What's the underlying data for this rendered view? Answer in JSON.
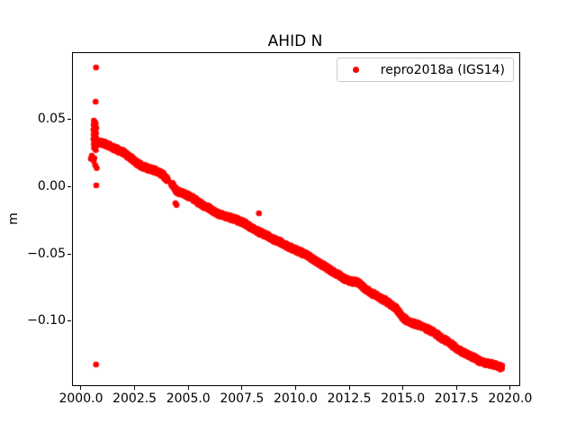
{
  "chart_data": {
    "type": "scatter",
    "title": "AHID N",
    "xlabel": "",
    "ylabel": "m",
    "grid": false,
    "xlim": [
      1999.581,
      2020.381
    ],
    "ylim": [
      -0.1469,
      0.1002
    ],
    "xticks": [
      2000.0,
      2002.5,
      2005.0,
      2007.5,
      2010.0,
      2012.5,
      2015.0,
      2017.5,
      2020.0
    ],
    "xtick_labels": [
      "2000.0",
      "2002.5",
      "2005.0",
      "2007.5",
      "2010.0",
      "2012.5",
      "2015.0",
      "2017.5",
      "2020.0"
    ],
    "yticks": [
      0.05,
      0.0,
      -0.05,
      -0.1
    ],
    "ytick_labels": [
      "0.05",
      "0.00",
      "−0.05",
      "−0.10"
    ],
    "legend": {
      "position": "upper right",
      "entries": [
        {
          "label": "repro2018a (IGS14)",
          "color": "#ff0000",
          "marker": "dot-icon"
        }
      ]
    },
    "series": [
      {
        "name": "repro2018a (IGS14)",
        "color": "#ff0000",
        "marker_radius_px": 3.3,
        "trend_anchors": [
          [
            2000.75,
            0.034
          ],
          [
            2001.05,
            0.033
          ],
          [
            2001.35,
            0.0305
          ],
          [
            2001.65,
            0.0282
          ],
          [
            2001.95,
            0.0262
          ],
          [
            2002.25,
            0.0226
          ],
          [
            2002.55,
            0.0184
          ],
          [
            2002.85,
            0.0158
          ],
          [
            2003.15,
            0.014
          ],
          [
            2003.45,
            0.0126
          ],
          [
            2003.75,
            0.01
          ],
          [
            2003.98,
            0.0058
          ],
          [
            2004.18,
            0.0028
          ],
          [
            2004.45,
            -0.0028
          ],
          [
            2004.75,
            -0.0046
          ],
          [
            2005.05,
            -0.0066
          ],
          [
            2005.35,
            -0.01
          ],
          [
            2005.65,
            -0.013
          ],
          [
            2005.95,
            -0.0156
          ],
          [
            2006.25,
            -0.0186
          ],
          [
            2006.55,
            -0.0206
          ],
          [
            2006.85,
            -0.0218
          ],
          [
            2007.15,
            -0.0236
          ],
          [
            2007.45,
            -0.0255
          ],
          [
            2007.75,
            -0.0282
          ],
          [
            2008.05,
            -0.031
          ],
          [
            2008.35,
            -0.0336
          ],
          [
            2008.65,
            -0.0358
          ],
          [
            2008.95,
            -0.0386
          ],
          [
            2009.25,
            -0.0406
          ],
          [
            2009.55,
            -0.0433
          ],
          [
            2009.85,
            -0.0455
          ],
          [
            2010.15,
            -0.0476
          ],
          [
            2010.45,
            -0.0498
          ],
          [
            2010.75,
            -0.0528
          ],
          [
            2011.05,
            -0.056
          ],
          [
            2011.35,
            -0.0588
          ],
          [
            2011.65,
            -0.062
          ],
          [
            2011.95,
            -0.0648
          ],
          [
            2012.25,
            -0.068
          ],
          [
            2012.55,
            -0.0695
          ],
          [
            2012.85,
            -0.0705
          ],
          [
            2013.15,
            -0.0745
          ],
          [
            2013.45,
            -0.078
          ],
          [
            2013.75,
            -0.0805
          ],
          [
            2014.05,
            -0.0832
          ],
          [
            2014.35,
            -0.0865
          ],
          [
            2014.65,
            -0.09
          ],
          [
            2014.95,
            -0.0965
          ],
          [
            2015.25,
            -0.1
          ],
          [
            2015.55,
            -0.1015
          ],
          [
            2015.85,
            -0.1032
          ],
          [
            2016.15,
            -0.1055
          ],
          [
            2016.45,
            -0.1082
          ],
          [
            2016.75,
            -0.1118
          ],
          [
            2017.05,
            -0.1145
          ],
          [
            2017.35,
            -0.1182
          ],
          [
            2017.65,
            -0.1215
          ],
          [
            2017.95,
            -0.124
          ],
          [
            2018.25,
            -0.1262
          ],
          [
            2018.55,
            -0.129
          ],
          [
            2018.85,
            -0.1305
          ],
          [
            2019.15,
            -0.1315
          ],
          [
            2019.4,
            -0.133
          ],
          [
            2019.58,
            -0.134
          ]
        ],
        "band": {
          "start": 2000.75,
          "end": 2019.58,
          "points_per_year": 320,
          "jitter_m": 0.0019,
          "gaps": [
            [
              2004.0,
              2004.16
            ]
          ]
        },
        "cluster_points": [
          [
            2000.66,
            0.0895
          ],
          [
            2000.64,
            0.064
          ],
          [
            2000.56,
            0.05
          ],
          [
            2000.6,
            0.049
          ],
          [
            2000.64,
            0.048
          ],
          [
            2000.55,
            0.047
          ],
          [
            2000.59,
            0.0462
          ],
          [
            2000.63,
            0.0452
          ],
          [
            2000.67,
            0.0444
          ],
          [
            2000.54,
            0.0432
          ],
          [
            2000.58,
            0.0424
          ],
          [
            2000.62,
            0.0415
          ],
          [
            2000.66,
            0.0406
          ],
          [
            2000.55,
            0.0396
          ],
          [
            2000.59,
            0.0388
          ],
          [
            2000.63,
            0.0378
          ],
          [
            2000.67,
            0.0369
          ],
          [
            2000.54,
            0.036
          ],
          [
            2000.58,
            0.0351
          ],
          [
            2000.62,
            0.0342
          ],
          [
            2000.66,
            0.0333
          ],
          [
            2000.56,
            0.0324
          ],
          [
            2000.6,
            0.0315
          ],
          [
            2000.64,
            0.0306
          ],
          [
            2000.57,
            0.0297
          ],
          [
            2000.61,
            0.0288
          ],
          [
            2000.65,
            0.028
          ],
          [
            2000.46,
            0.0238
          ],
          [
            2000.42,
            0.0215
          ],
          [
            2000.58,
            0.022
          ],
          [
            2000.55,
            0.02
          ],
          [
            2000.62,
            0.0168
          ],
          [
            2000.69,
            0.0147
          ],
          [
            2000.67,
            0.0018
          ]
        ],
        "outlier_points": [
          [
            2000.66,
            -0.1315
          ],
          [
            2004.36,
            -0.0115
          ],
          [
            2004.41,
            -0.0128
          ],
          [
            2008.25,
            -0.019
          ]
        ]
      }
    ]
  }
}
